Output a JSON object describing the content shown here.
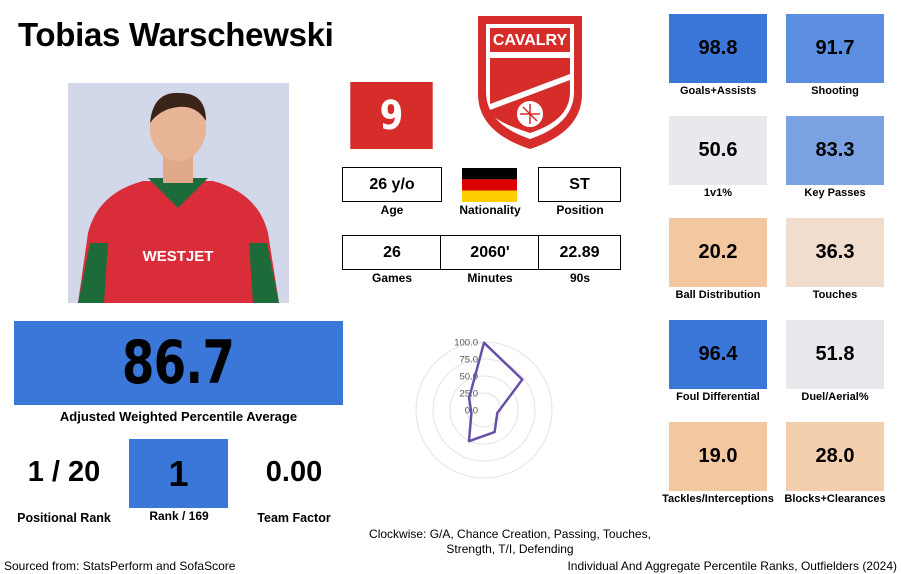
{
  "player": {
    "name": "Tobias Warschewski",
    "jersey": "9",
    "club": "CAVALRY",
    "age": "26 y/o",
    "age_label": "Age",
    "nationality_label": "Nationality",
    "position": "ST",
    "position_label": "Position",
    "games": "26",
    "games_label": "Games",
    "minutes": "2060'",
    "minutes_label": "Minutes",
    "nineties": "22.89",
    "nineties_label": "90s"
  },
  "summary": {
    "score": "86.7",
    "score_label": "Adjusted Weighted Percentile Average",
    "positional_rank": "1 / 20",
    "positional_rank_label": "Positional Rank",
    "rank": "1",
    "rank_label": "Rank / 169",
    "team_factor": "0.00",
    "team_factor_label": "Team Factor"
  },
  "tiles": [
    {
      "value": "98.8",
      "label": "Goals+Assists",
      "color": "#3b77d9"
    },
    {
      "value": "91.7",
      "label": "Shooting",
      "color": "#5b8ee0"
    },
    {
      "value": "50.6",
      "label": "1v1%",
      "color": "#e8e9ec"
    },
    {
      "value": "83.3",
      "label": "Key Passes",
      "color": "#7aa2e2"
    },
    {
      "value": "20.2",
      "label": "Ball Distribution",
      "color": "#f3c7a0"
    },
    {
      "value": "36.3",
      "label": "Touches",
      "color": "#f1ddcd"
    },
    {
      "value": "96.4",
      "label": "Foul Differential",
      "color": "#3b77d9"
    },
    {
      "value": "51.8",
      "label": "Duel/Aerial%",
      "color": "#e8e9ec"
    },
    {
      "value": "19.0",
      "label": "Tackles/Interceptions",
      "color": "#f3c7a0"
    },
    {
      "value": "28.0",
      "label": "Blocks+Clearances",
      "color": "#f3cfae"
    }
  ],
  "chart_data": {
    "type": "radar",
    "ticks": [
      "100.0",
      "75.0",
      "50.0",
      "25.0",
      "0.0"
    ],
    "rmax": 100,
    "axes": [
      "G/A",
      "Chance Creation",
      "Passing",
      "Touches",
      "Strength",
      "T/I",
      "Defending"
    ],
    "values": [
      99,
      72,
      20,
      36,
      51,
      19,
      28
    ],
    "line_color": "#6a4fa8",
    "caption_line1": "Clockwise: G/A, Chance Creation, Passing, Touches,",
    "caption_line2": "Strength, T/I, Defending"
  },
  "footer": {
    "source": "Sourced from: StatsPerform and SofaScore",
    "title": "Individual And Aggregate Percentile Ranks, Outfielders (2024)"
  }
}
